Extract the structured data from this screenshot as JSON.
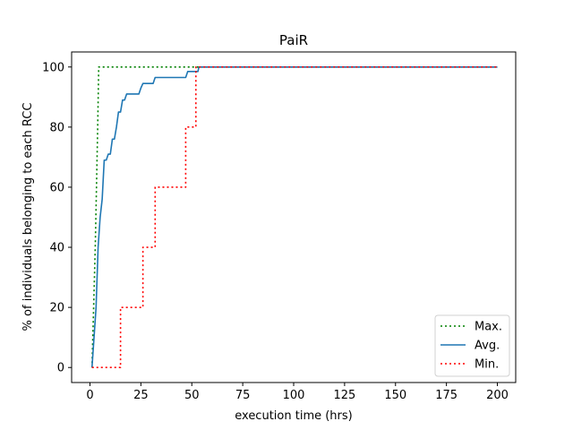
{
  "chart_data": {
    "type": "line",
    "title": "PaiR",
    "xlabel": "execution time (hrs)",
    "ylabel": "% of individuals belonging to each RCC",
    "xlim": [
      -9,
      209
    ],
    "ylim": [
      -5,
      105
    ],
    "xticks": [
      0,
      25,
      50,
      75,
      100,
      125,
      150,
      175,
      200
    ],
    "yticks": [
      0,
      20,
      40,
      60,
      80,
      100
    ],
    "grid": false,
    "legend_position": "lower-right",
    "series": [
      {
        "name": "Max.",
        "color": "#008000",
        "style": "dotted",
        "points": [
          [
            1,
            0
          ],
          [
            1.8,
            20
          ],
          [
            2.6,
            40
          ],
          [
            3.2,
            60
          ],
          [
            3.8,
            80
          ],
          [
            4.3,
            100
          ],
          [
            200,
            100
          ]
        ]
      },
      {
        "name": "Avg.",
        "color": "#1f77b4",
        "style": "solid",
        "points": [
          [
            1,
            0
          ],
          [
            3,
            20
          ],
          [
            4,
            40
          ],
          [
            5,
            50
          ],
          [
            6,
            56
          ],
          [
            7,
            69
          ],
          [
            8,
            69
          ],
          [
            9,
            71
          ],
          [
            10,
            71
          ],
          [
            11,
            76
          ],
          [
            12,
            76
          ],
          [
            13,
            80
          ],
          [
            14,
            85
          ],
          [
            15,
            85
          ],
          [
            16,
            89
          ],
          [
            17,
            89
          ],
          [
            18,
            91
          ],
          [
            19,
            91
          ],
          [
            24,
            91
          ],
          [
            25,
            93
          ],
          [
            26,
            94.5
          ],
          [
            31,
            94.5
          ],
          [
            32,
            96.5
          ],
          [
            47,
            96.5
          ],
          [
            48,
            98.5
          ],
          [
            53,
            98.5
          ],
          [
            53.5,
            100
          ],
          [
            200,
            100
          ]
        ]
      },
      {
        "name": "Min.",
        "color": "#ff0000",
        "style": "dotted",
        "points": [
          [
            1,
            0
          ],
          [
            15,
            0
          ],
          [
            15,
            20
          ],
          [
            26,
            20
          ],
          [
            26,
            40
          ],
          [
            32,
            40
          ],
          [
            32,
            60
          ],
          [
            47,
            60
          ],
          [
            47,
            80
          ],
          [
            52,
            80
          ],
          [
            52,
            100
          ],
          [
            200,
            100
          ]
        ]
      }
    ]
  }
}
